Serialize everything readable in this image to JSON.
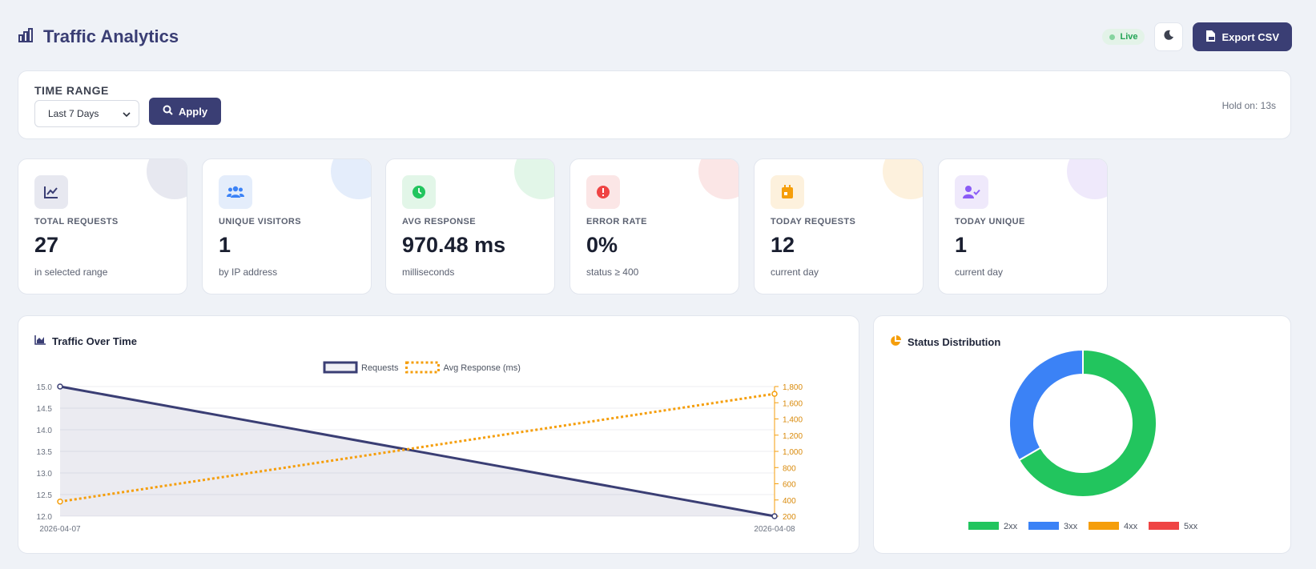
{
  "header": {
    "title": "Traffic Analytics",
    "live_label": "Live",
    "export_label": "Export CSV"
  },
  "filter": {
    "label": "TIME RANGE",
    "selected": "Last 7 Days",
    "apply_label": "Apply",
    "hold_text": "Hold on: 13s"
  },
  "stats": [
    {
      "label": "TOTAL REQUESTS",
      "value": "27",
      "sub": "in selected range",
      "icon": "chart-line-icon",
      "color": "#3a3e74"
    },
    {
      "label": "UNIQUE VISITORS",
      "value": "1",
      "sub": "by IP address",
      "icon": "users-icon",
      "color": "#3b82f6"
    },
    {
      "label": "AVG RESPONSE",
      "value": "970.48 ms",
      "sub": "milliseconds",
      "icon": "clock-icon",
      "color": "#22c55e"
    },
    {
      "label": "ERROR RATE",
      "value": "0%",
      "sub": "status ≥ 400",
      "icon": "alert-icon",
      "color": "#ef4444"
    },
    {
      "label": "TODAY REQUESTS",
      "value": "12",
      "sub": "current day",
      "icon": "calendar-icon",
      "color": "#f59e0b"
    },
    {
      "label": "TODAY UNIQUE",
      "value": "1",
      "sub": "current day",
      "icon": "user-check-icon",
      "color": "#8b5cf6"
    }
  ],
  "traffic_panel": {
    "title": "Traffic Over Time"
  },
  "status_panel": {
    "title": "Status Distribution"
  },
  "chart_data": [
    {
      "type": "line",
      "x": [
        "2026-04-07",
        "2026-04-08"
      ],
      "series": [
        {
          "name": "Requests",
          "values": [
            15,
            12
          ],
          "axis": "left",
          "color": "#3a3e74",
          "fill": true
        },
        {
          "name": "Avg Response (ms)",
          "values": [
            380,
            1710
          ],
          "axis": "right",
          "color": "#f59e0b",
          "dashed": true
        }
      ],
      "y_left": {
        "min": 12,
        "max": 15,
        "ticks": [
          "15.0",
          "14.5",
          "14.0",
          "13.5",
          "13.0",
          "12.5",
          "12.0"
        ]
      },
      "y_right": {
        "min": 200,
        "max": 1800,
        "ticks": [
          "1,800",
          "1,600",
          "1,400",
          "1,200",
          "1,000",
          "800",
          "600",
          "400",
          "200"
        ]
      },
      "grid": true,
      "legend": "top"
    },
    {
      "type": "pie",
      "labels": [
        "2xx",
        "3xx",
        "4xx",
        "5xx"
      ],
      "values": [
        18,
        9,
        0,
        0
      ],
      "colors": [
        "#22c55e",
        "#3b82f6",
        "#f59e0b",
        "#ef4444"
      ],
      "legend": "bottom"
    }
  ]
}
